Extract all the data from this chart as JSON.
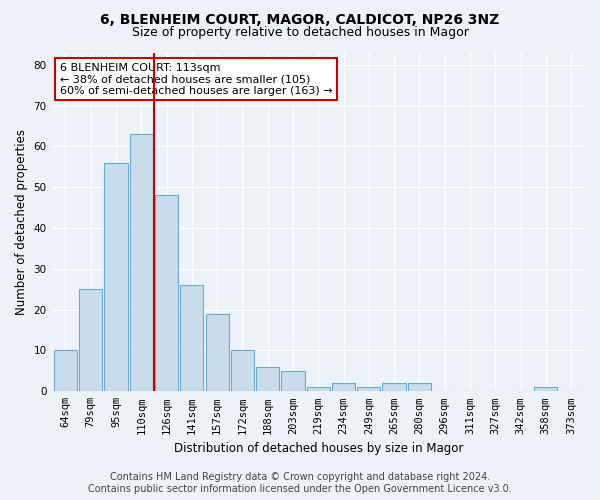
{
  "title1": "6, BLENHEIM COURT, MAGOR, CALDICOT, NP26 3NZ",
  "title2": "Size of property relative to detached houses in Magor",
  "xlabel": "Distribution of detached houses by size in Magor",
  "ylabel": "Number of detached properties",
  "categories": [
    "64sqm",
    "79sqm",
    "95sqm",
    "110sqm",
    "126sqm",
    "141sqm",
    "157sqm",
    "172sqm",
    "188sqm",
    "203sqm",
    "219sqm",
    "234sqm",
    "249sqm",
    "265sqm",
    "280sqm",
    "296sqm",
    "311sqm",
    "327sqm",
    "342sqm",
    "358sqm",
    "373sqm"
  ],
  "values": [
    10,
    25,
    56,
    63,
    48,
    26,
    19,
    10,
    6,
    5,
    1,
    2,
    1,
    2,
    2,
    0,
    0,
    0,
    0,
    1,
    0
  ],
  "bar_color": "#c9dcea",
  "bar_edge_color": "#6aaad4",
  "red_line_index": 3,
  "annotation_line1": "6 BLENHEIM COURT: 113sqm",
  "annotation_line2": "← 38% of detached houses are smaller (105)",
  "annotation_line3": "60% of semi-detached houses are larger (163) →",
  "annotation_box_color": "#ffffff",
  "annotation_box_edge": "#cc0000",
  "red_line_color": "#cc0000",
  "ylim": [
    0,
    83
  ],
  "yticks": [
    0,
    10,
    20,
    30,
    40,
    50,
    60,
    70,
    80
  ],
  "footer1": "Contains HM Land Registry data © Crown copyright and database right 2024.",
  "footer2": "Contains public sector information licensed under the Open Government Licence v3.0.",
  "background_color": "#edf2f9",
  "grid_color": "#ffffff",
  "title1_fontsize": 10,
  "title2_fontsize": 9,
  "axis_label_fontsize": 8.5,
  "tick_fontsize": 7.5,
  "annotation_fontsize": 8,
  "footer_fontsize": 7
}
